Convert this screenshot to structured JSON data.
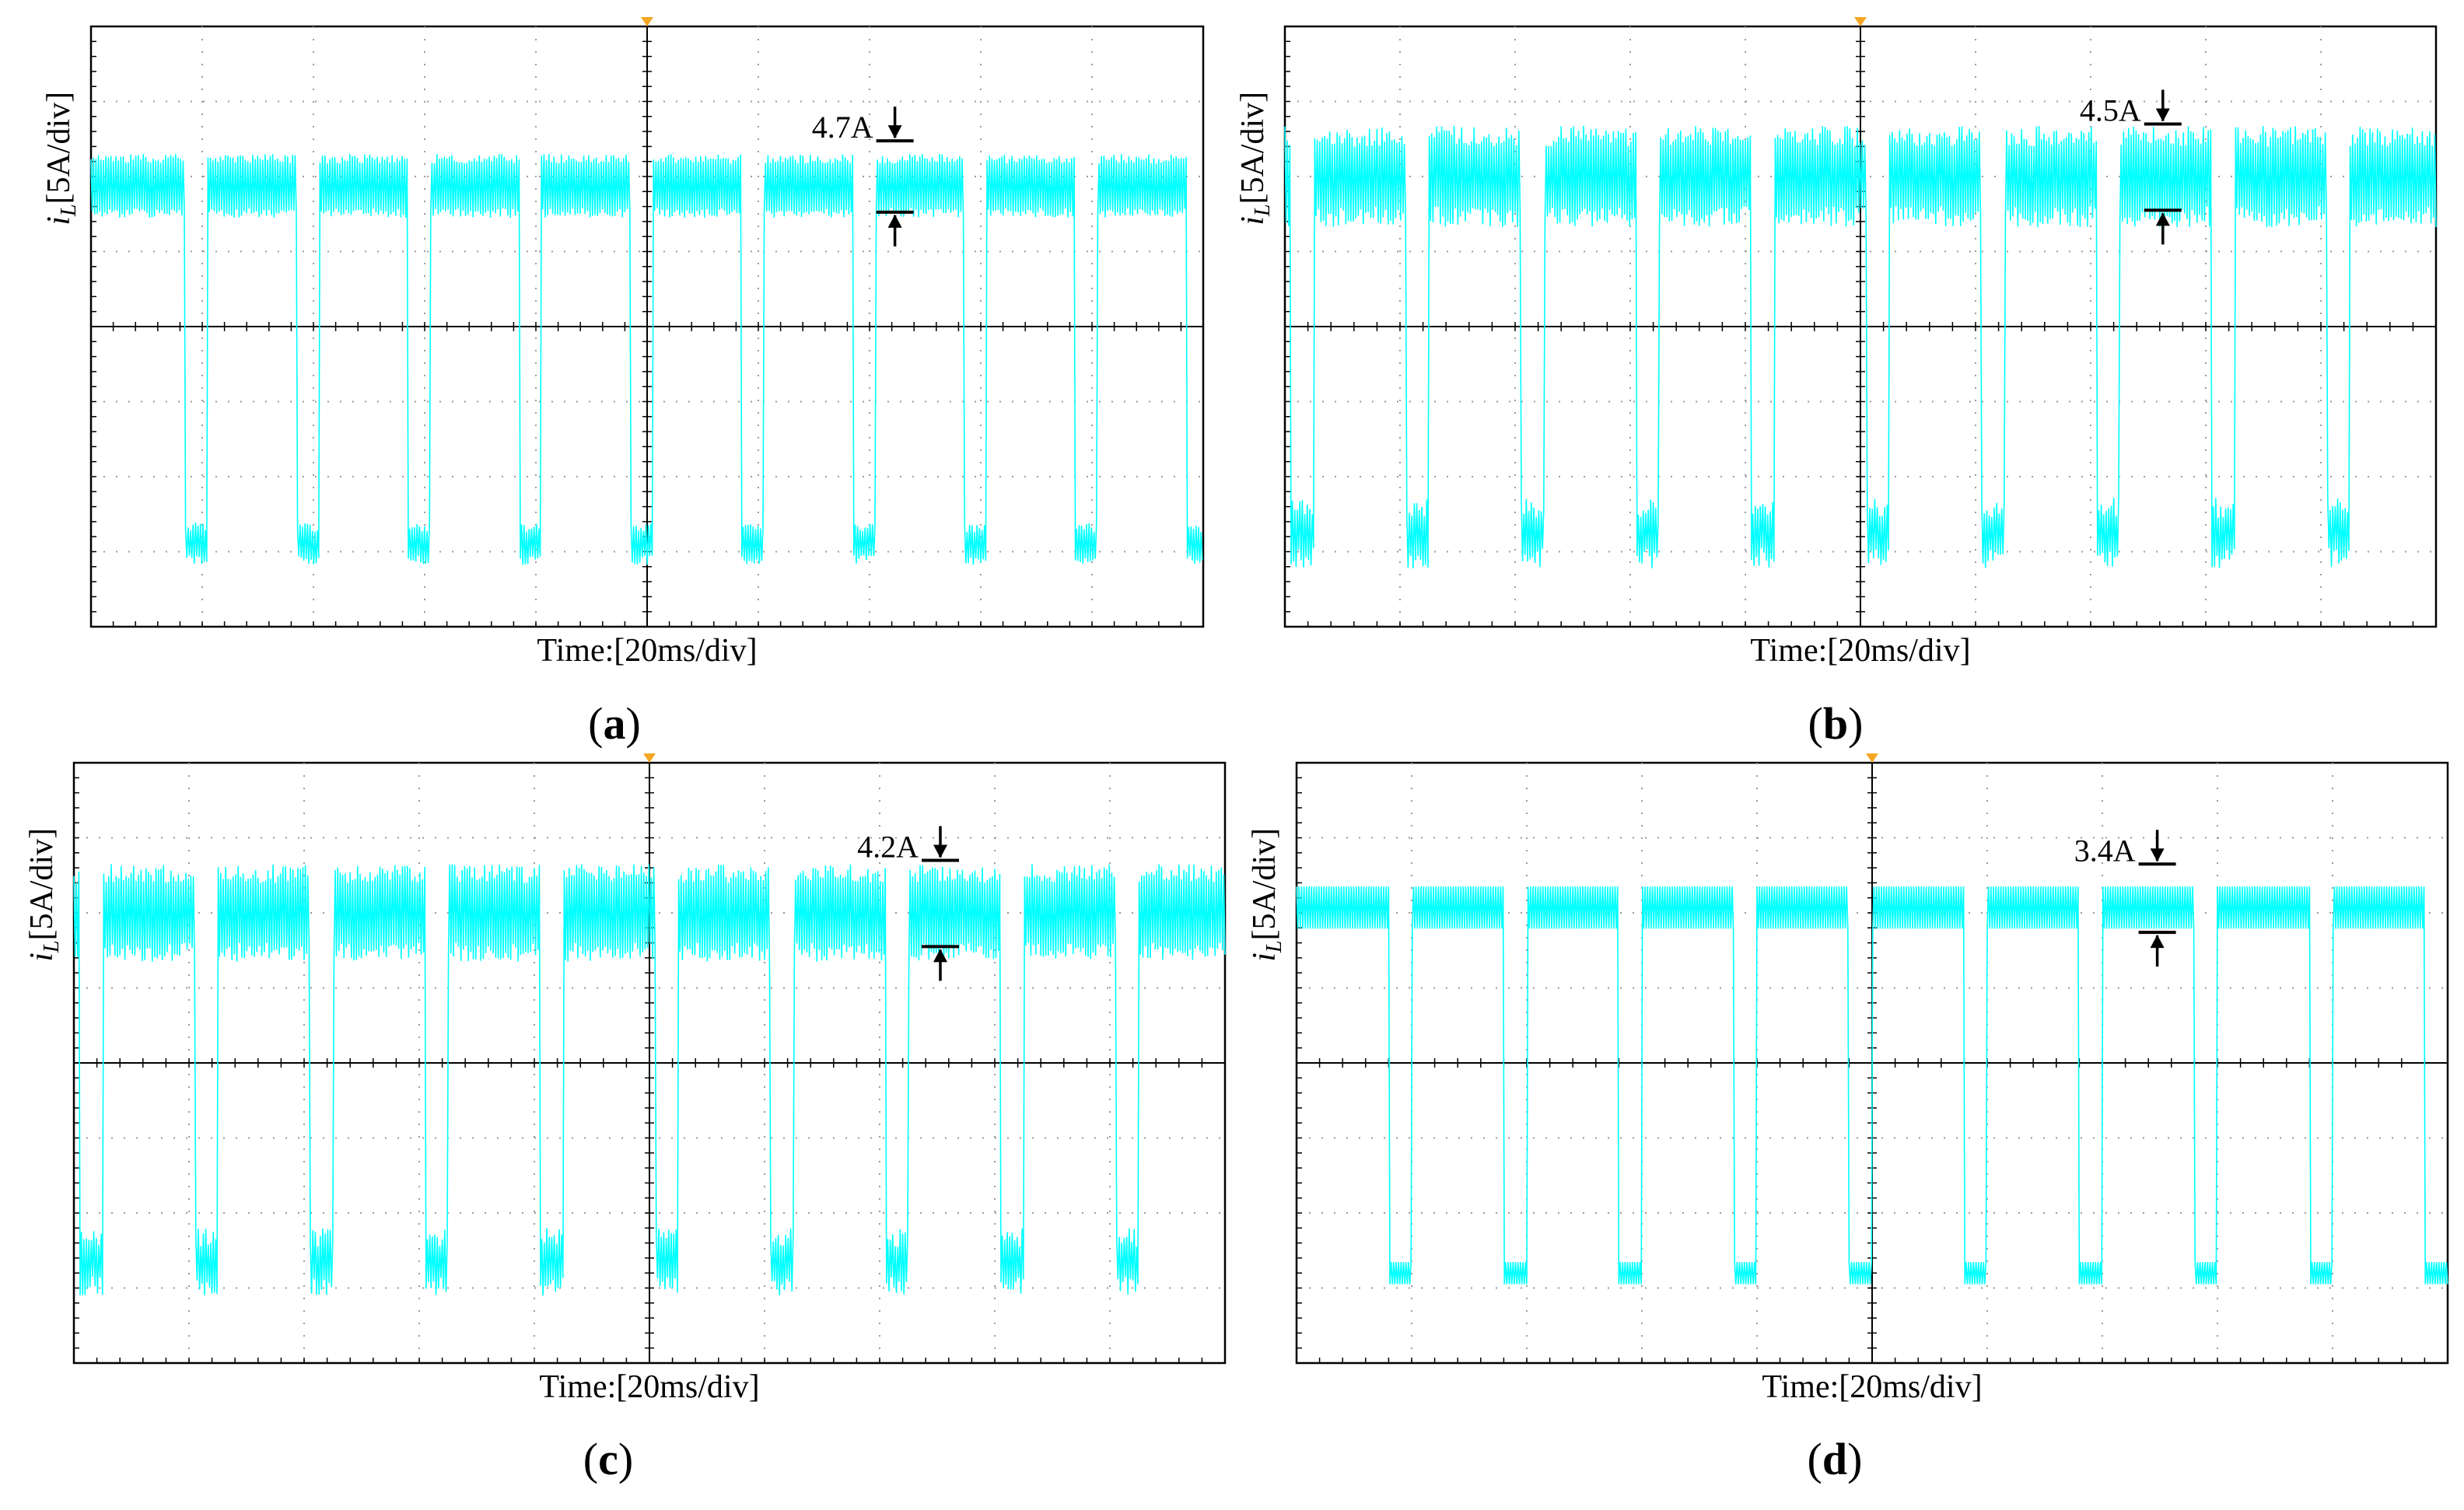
{
  "colors": {
    "trace": "#00ffff",
    "grid": "#9a9a9a",
    "axis": "#000000",
    "marker": "#f5a623"
  },
  "chart_data": [
    {
      "type": "line",
      "panel_label": "a",
      "caption": "(a)",
      "ylabel_var": "i",
      "ylabel_sub": "L",
      "ylabel_rest": "[5A/div]",
      "xlabel": "Time:[20ms/div]",
      "divisions": {
        "x": 10,
        "y": 8
      },
      "y_div_range": [
        -4,
        4
      ],
      "high_level_div": 1.8,
      "low_level_div": -3.0,
      "ripple_div": 0.75,
      "noise": 0.25,
      "pulse_period_div": 1.0,
      "pulse_low_width_div": 0.2,
      "pulse_first_div": 0.85,
      "annotation": {
        "text": "4.7A",
        "amplitude_A": 4.7,
        "x_div": 7.2
      }
    },
    {
      "type": "line",
      "panel_label": "b",
      "caption": "(b)",
      "ylabel_var": "i",
      "ylabel_sub": "L",
      "ylabel_rest": "[5A/div]",
      "xlabel": "Time:[20ms/div]",
      "divisions": {
        "x": 10,
        "y": 8
      },
      "y_div_range": [
        -4,
        4
      ],
      "high_level_div": 1.9,
      "low_level_div": -2.9,
      "ripple_div": 1.0,
      "noise": 0.55,
      "pulse_period_div": 1.0,
      "pulse_low_width_div": 0.2,
      "pulse_first_div": 0.05,
      "annotation": {
        "text": "4.5A",
        "amplitude_A": 4.5,
        "x_div": 7.6
      }
    },
    {
      "type": "line",
      "panel_label": "c",
      "caption": "(c)",
      "ylabel_var": "i",
      "ylabel_sub": "L",
      "ylabel_rest": "[5A/div]",
      "xlabel": "Time:[20ms/div]",
      "divisions": {
        "x": 10,
        "y": 8
      },
      "y_div_range": [
        -4,
        4
      ],
      "high_level_div": 1.9,
      "low_level_div": -2.8,
      "ripple_div": 1.0,
      "noise": 0.5,
      "pulse_period_div": 1.0,
      "pulse_low_width_div": 0.2,
      "pulse_first_div": 0.05,
      "annotation": {
        "text": "4.2A",
        "amplitude_A": 4.2,
        "x_div": 7.5
      }
    },
    {
      "type": "line",
      "panel_label": "d",
      "caption": "(d)",
      "ylabel_var": "i",
      "ylabel_sub": "L",
      "ylabel_rest": "[5A/div]",
      "xlabel": "Time:[20ms/div]",
      "divisions": {
        "x": 10,
        "y": 8
      },
      "y_div_range": [
        -4,
        4
      ],
      "high_level_div": 2.0,
      "low_level_div": -2.9,
      "ripple_div": 0.7,
      "noise": 0.0,
      "pulse_period_div": 1.0,
      "pulse_low_width_div": 0.2,
      "pulse_first_div": 0.8,
      "annotation": {
        "text": "3.4A",
        "amplitude_A": 3.4,
        "x_div": 7.45
      }
    }
  ]
}
